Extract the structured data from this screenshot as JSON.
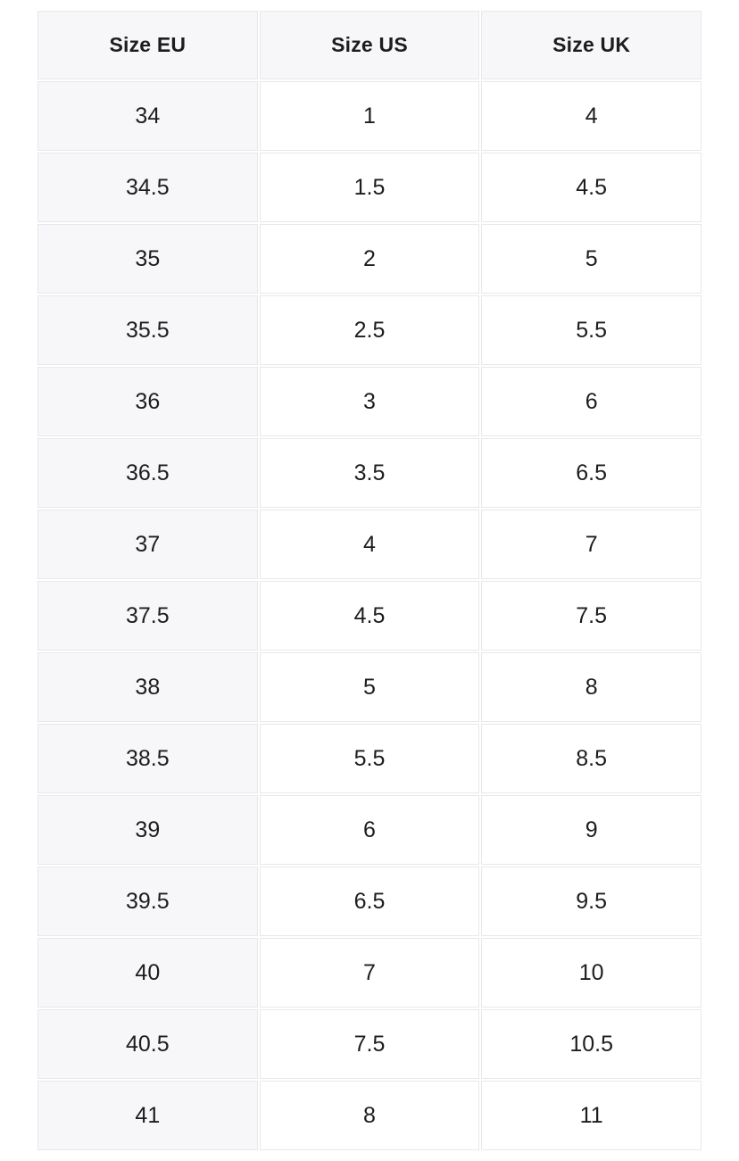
{
  "chart_data": {
    "type": "table",
    "columns": [
      {
        "key": "size-eu",
        "label": "Size EU"
      },
      {
        "key": "size-us",
        "label": "Size US"
      },
      {
        "key": "size-uk",
        "label": "Size UK"
      }
    ],
    "rows": [
      [
        "34",
        "1",
        "4"
      ],
      [
        "34.5",
        "1.5",
        "4.5"
      ],
      [
        "35",
        "2",
        "5"
      ],
      [
        "35.5",
        "2.5",
        "5.5"
      ],
      [
        "36",
        "3",
        "6"
      ],
      [
        "36.5",
        "3.5",
        "6.5"
      ],
      [
        "37",
        "4",
        "7"
      ],
      [
        "37.5",
        "4.5",
        "7.5"
      ],
      [
        "38",
        "5",
        "8"
      ],
      [
        "38.5",
        "5.5",
        "8.5"
      ],
      [
        "39",
        "6",
        "9"
      ],
      [
        "39.5",
        "6.5",
        "9.5"
      ],
      [
        "40",
        "7",
        "10"
      ],
      [
        "40.5",
        "7.5",
        "10.5"
      ],
      [
        "41",
        "8",
        "11"
      ]
    ]
  },
  "colors": {
    "page_bg": "#ffffff",
    "header_bg": "#f7f7f9",
    "first_col_bg": "#f7f7f9",
    "border": "#e8e8ec",
    "text": "#1d1d1f"
  }
}
